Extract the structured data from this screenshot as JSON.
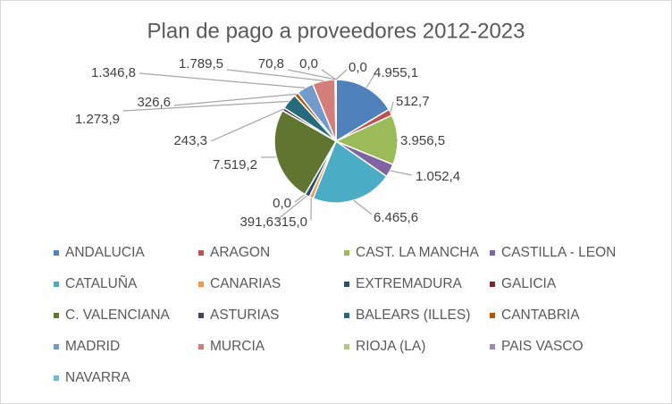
{
  "chart_data": {
    "type": "pie",
    "title": "Plan de pago a proveedores  2012-2023",
    "categories": [
      "ANDALUCIA",
      "ARAGON",
      "CAST. LA MANCHA",
      "CASTILLA - LEON",
      "CATALUÑA",
      "CANARIAS",
      "EXTREMADURA",
      "GALICIA",
      "C. VALENCIANA",
      "ASTURIAS",
      "BALEARS (ILLES)",
      "CANTABRIA",
      "MADRID",
      "MURCIA",
      "RIOJA (LA)",
      "PAIS VASCO",
      "NAVARRA"
    ],
    "values": [
      4955.1,
      512.7,
      3956.5,
      1052.4,
      6465.6,
      315.0,
      391.6,
      0.0,
      7519.2,
      243.3,
      1273.9,
      326.6,
      1346.8,
      1789.5,
      70.8,
      0.0,
      0.0
    ],
    "value_labels": [
      "4.955,1",
      "512,7",
      "3.956,5",
      "1.052,4",
      "6.465,6",
      "315,0",
      "391,6",
      "0,0",
      "7.519,2",
      "243,3",
      "1.273,9",
      "326,6",
      "1.346,8",
      "1.789,5",
      "70,8",
      "0,0",
      "0,0"
    ],
    "colors": [
      "#4f81bd",
      "#c0504d",
      "#9bbb59",
      "#8064a2",
      "#4bacc6",
      "#f79646",
      "#2c4d75",
      "#772c2a",
      "#5f7530",
      "#4d3b62",
      "#276a7c",
      "#b65708",
      "#729aca",
      "#d47e7c",
      "#afc97a",
      "#9d88b8",
      "#6fbdd1"
    ],
    "legend": "bottom"
  }
}
